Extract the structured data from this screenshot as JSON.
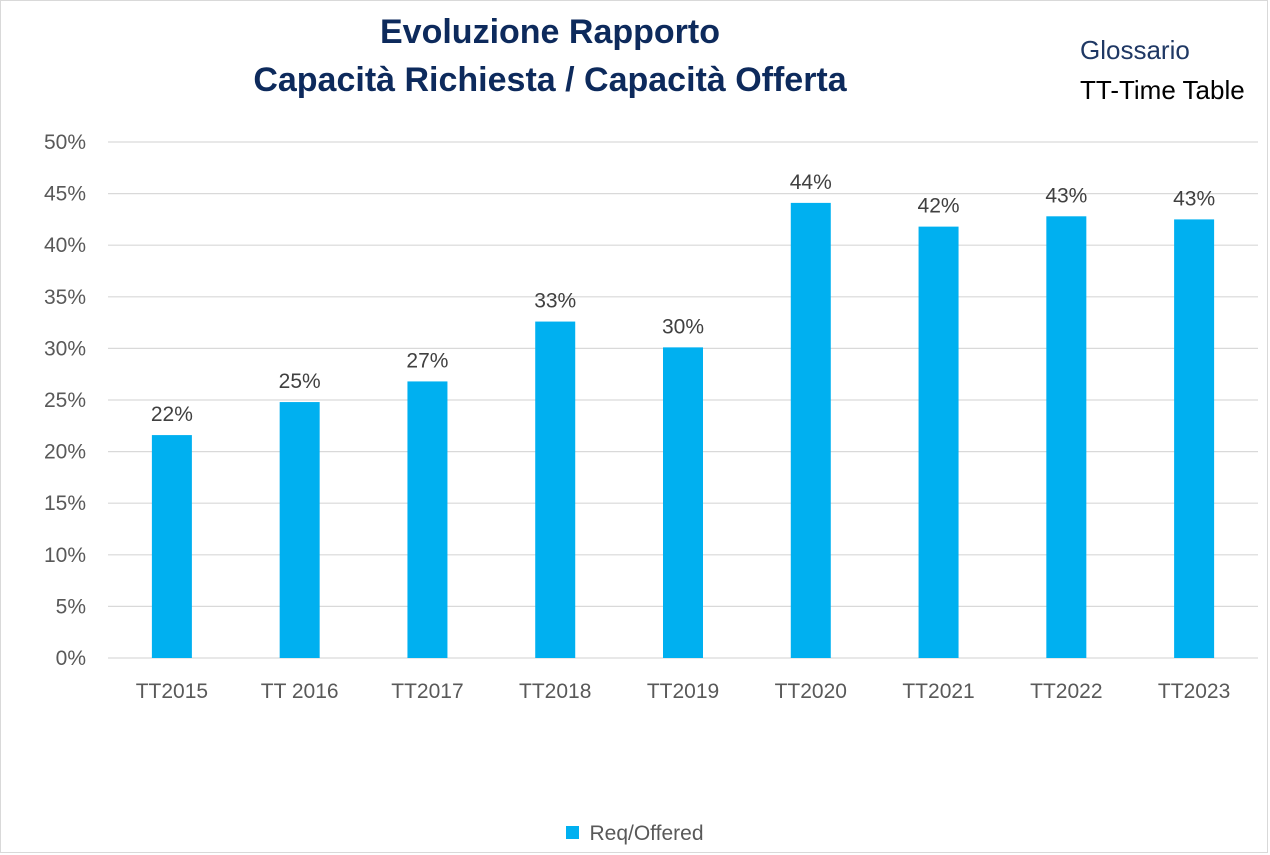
{
  "title_line1": "Evoluzione Rapporto",
  "title_line2": "Capacità Richiesta / Capacità Offerta",
  "glossary": {
    "title": "Glossario",
    "item": "TT-Time Table"
  },
  "colors": {
    "bar": "#00b0f0",
    "title": "#0d2a5c",
    "grid": "#d9d9d9"
  },
  "chart_data": {
    "type": "bar",
    "categories": [
      "TT2015",
      "TT 2016",
      "TT2017",
      "TT2018",
      "TT2019",
      "TT2020",
      "TT2021",
      "TT2022",
      "TT2023"
    ],
    "series": [
      {
        "name": "Req/Offered",
        "values": [
          21.6,
          24.8,
          26.8,
          32.6,
          30.1,
          44.1,
          41.8,
          42.8,
          42.5
        ]
      }
    ],
    "data_labels": [
      "22%",
      "25%",
      "27%",
      "33%",
      "30%",
      "44%",
      "42%",
      "43%",
      "43%"
    ],
    "y_ticks": [
      "0%",
      "5%",
      "10%",
      "15%",
      "20%",
      "25%",
      "30%",
      "35%",
      "40%",
      "45%",
      "50%"
    ],
    "ylim": [
      0,
      50
    ],
    "grid": true,
    "legend_position": "bottom"
  }
}
